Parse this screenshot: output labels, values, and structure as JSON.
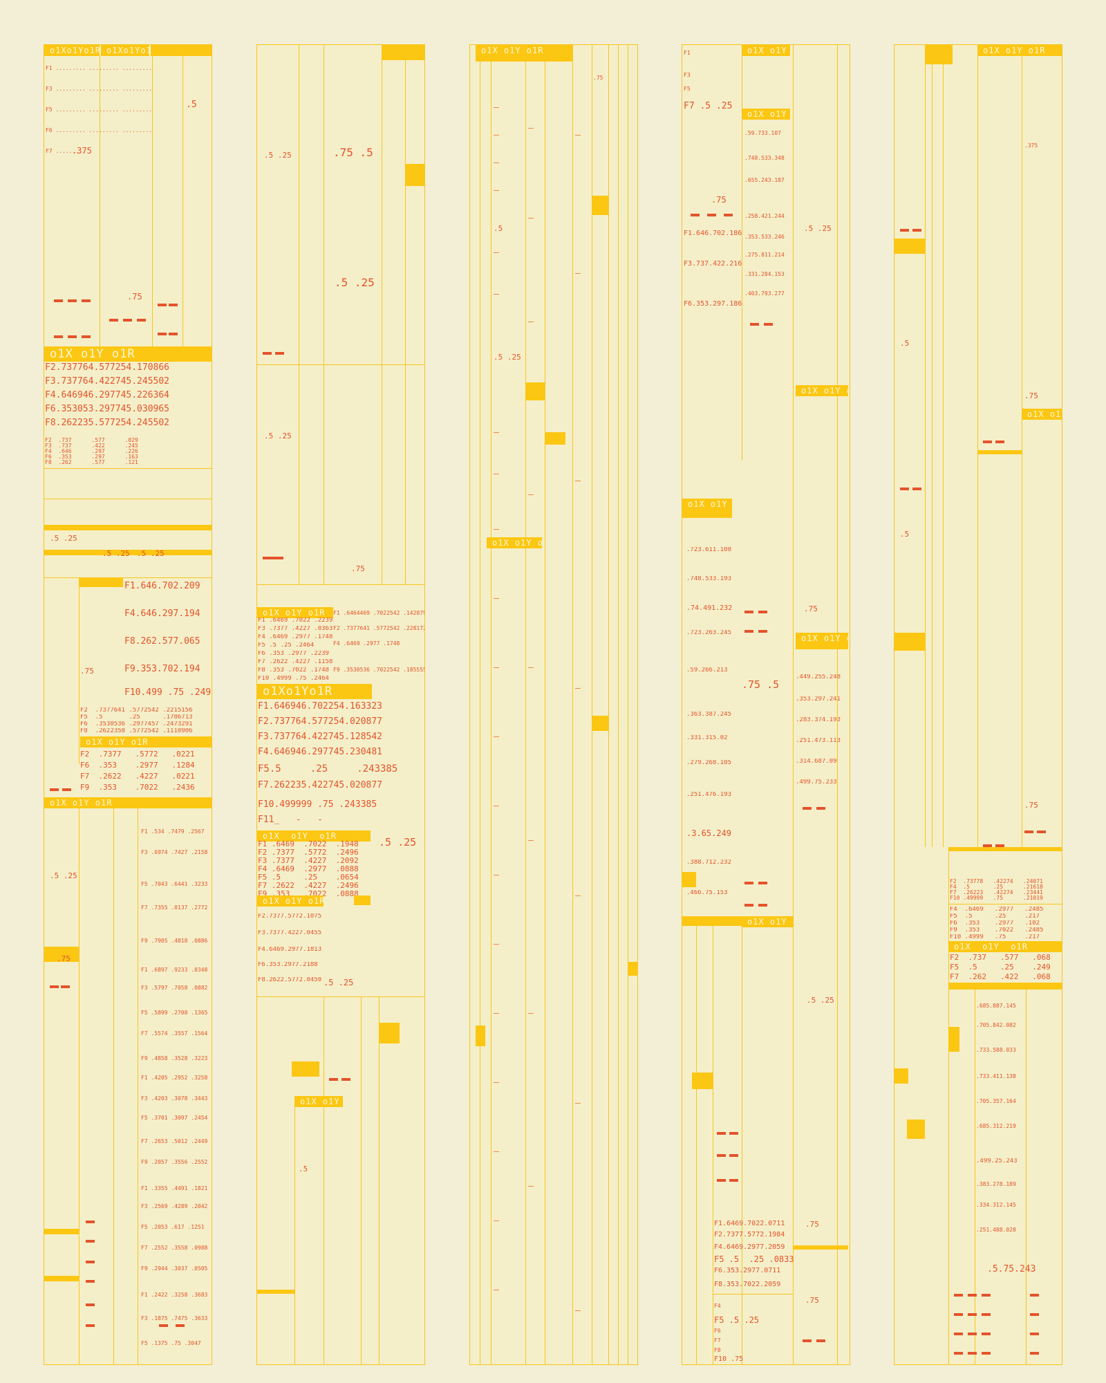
{
  "palette": {
    "background": "#f2efd6",
    "panel": "#f4efc9",
    "gold": "#fcc713",
    "line": "#f7c51e",
    "red": "#e4532c"
  },
  "col1": {
    "hdr_a": "o1Xo1Yo1R",
    "hdr_b": "o1Xo1Yo1R",
    "v1": ".5",
    "v2": ".375",
    "v3": ".75",
    "bigband": "o1X o1Y o1R",
    "rows": [
      "F2.737764.577254.170866",
      "F3.737764.422745.245502",
      "F4.646946.297745.226364",
      "F6.353053.297745.030965",
      "F8.262235.577254.245502"
    ],
    "small": [
      "F2  .737      .577      .029",
      "F3  .737      .422      .245",
      "F4  .646      .297      .226",
      "F6  .353      .297      .163",
      "F8  .262      .577      .121"
    ],
    "mid_a": ".5 .25",
    "mid_b": ".5 .25",
    "mid_c": ".5 .25",
    "right_rows": [
      "F1.646.702.209",
      "F4.646.297.194",
      "F8.262.577.065",
      "F9.353.702.194",
      "F10.499 .75 .249"
    ],
    "band2": "o1X o1Y o1R",
    "five": [
      "F2  .7377641 .5772542 .2215156",
      "F5  .5       .25      .1786713",
      "F6  .3530536 .2977457 .2473291",
      "F8  .2622358 .5772542 .1110906"
    ],
    "band3": "o1X  o1Y  o1R",
    "four": [
      "F2  .7377   .5772   .0221",
      "F6  .353    .2977   .1284",
      "F7  .2622   .4227   .0221",
      "F9  .353    .7022   .2436"
    ],
    "lower_hdr": "o1X o1Y o1R",
    "lower_rows": [
      "F1 .534 .7479 .2567",
      "F3 .6974 .7427 .2158",
      "F5 .7043 .6441 .3233",
      "F7 .7355 .0137 .2772",
      "F9 .7905 .4818 .0886",
      "F1 .6897 .9233 .0348",
      "F3 .5797 .7058 .0882",
      "F5 .5899 .2708 .1365",
      "F7 .5574 .3557 .1564",
      "F9 .4858 .3528 .3223",
      "F1 .4205 .2952 .3258",
      "F3 .4203 .3078 .3443",
      "F5 .3701 .3097 .2454",
      "F7 .2653 .5012 .2449",
      "F9 .2057 .3556 .2552",
      "F1 .3355 .4491 .1821",
      "F3 .2569 .4289 .2042",
      "F5 .2053 .617 .1251",
      "F7 .2552 .3558 .0988",
      "F9 .2944 .3037 .0505",
      "F1 .2422 .3258 .3683",
      "F3 .1875 .7475 .3633",
      "F5 .1375 .75 .3047"
    ],
    "v75": ".75"
  },
  "col2": {
    "v_mid": ".75 .5",
    "v_a": ".5 .25",
    "v_b": ".5 .25",
    "v_c": ".5 .25",
    "v_d": ".75",
    "band": "o1X o1Y o1R",
    "block_rows": [
      "F1 .6469 .7022 .2239",
      "F3 .7377 .4227 .0363",
      "F4 .6469 .2977 .1748",
      "F5 .5    .25   .2464",
      "F6 .353 .2977 .2239",
      "F7 .2622 .4227 .1158",
      "F8 .353 .7022 .1748",
      "F10 .4999 .75 .2464"
    ],
    "mini_rows": [
      "F1 .6464469 .7022542 .1428795",
      "F2 .7377641 .5772542 .2281729",
      "F4 .6469 .2977 .1748",
      "F9 .3530536 .7022542 .1855553"
    ],
    "bigband": "o1Xo1Yo1R",
    "big_rows": [
      "F1.646946.702254.163323",
      "F2.737764.577254.020877",
      "F3.737764.422745.128542",
      "F4.646946.297745.230481",
      "F5.5     .25     .243385",
      "F7.262235.422745.020877",
      "F10.499999 .75 .243385",
      "F11_   -   -"
    ],
    "tbl_hdr": "o1X  o1Y  o1R",
    "tbl_rows": [
      "F1 .6469  .7022  .1948",
      "F2 .7377  .5772  .2496",
      "F3 .7377  .4227  .2092",
      "F4 .6469  .2977  .0888",
      "F5 .5     .25    .0654",
      "F7 .2622  .4227  .2496",
      "F9 .353   .7022  .0888"
    ],
    "hdr3": "o1X o1Y o1R",
    "mid_rows": [
      "F2.7377.5772.1075",
      "F3.7377.4227.0455",
      "F4.6469.2977.1813",
      "F6.353.2977.2188",
      "F8.2622.5772.0450"
    ],
    "hdr4": "o1X o1Y o1R",
    "v_e": ".5 .25",
    "v_f": ".5 .25"
  },
  "col3": {
    "hdr": "o1X o1Y o1R",
    "hdr2": "o1X o1Y o1R",
    "v_a": ".5",
    "v_b": ".5 .25",
    "v_c": ".75"
  },
  "col4": {
    "hdr": "o1X o1Y o1R",
    "hdr2": "o1X o1Y o1R",
    "top_rows": [
      "F1",
      "F3",
      "F5",
      "F7 .5 .25"
    ],
    "rows_a": [
      "F1.646.702.186",
      "F3.737.422.216",
      "F6.353.297.186"
    ],
    "side_rows": [
      ".59.733.107",
      ".748.533.348",
      ".655.243.187",
      ".258.421.244",
      ".353.533.246",
      ".275.811.214",
      ".331.284.153",
      ".403.793.277"
    ],
    "band": "o1X o1Y o1R",
    "band2": "o1X o1Y o1R",
    "band3": "o1X o1Y o1R",
    "band4": "o1X o1Y o1R",
    "side2": [
      ".723.611.108",
      ".748.533.193",
      ".74.491.232",
      ".723.263.245",
      ".59.266.213",
      ".363.387.245",
      ".331.315.02",
      ".279.268.105",
      ".251.476.193",
      ".3.65.249",
      ".388.712.232",
      ".466.75.153"
    ],
    "right_vals": [
      ".449.255.248",
      ".353.297.241",
      ".283.374.193",
      ".251.473.113",
      ".314.687.09",
      ".499.75.233"
    ],
    "v_a": ".75 .5",
    "v_b": ".5 .25",
    "v_c": ".5 .25",
    "v_d": ".75",
    "low_rows": [
      "F1.6469.7022.0711",
      "F2.7377.5772.1984",
      "F4.6469.2977.2059",
      "F5 .5  .25 .0833",
      "F6.353.2977.0711",
      "F8.353.7022.2059"
    ],
    "low_rows2": [
      "F4",
      "F5 .5 .25",
      "F6",
      "F7",
      "F8",
      "F10 .75"
    ]
  },
  "col5": {
    "hdr": "o1X o1Y o1R",
    "hdr2": "o1X o1Y o1R",
    "hdr3": "o1X o1Y o1R",
    "v_a": ".375",
    "v_b": ".5",
    "v_c": ".5",
    "v_d": ".75",
    "v_e": ".75",
    "tbl": [
      "F2  .73778   .42274   .24071",
      "F4  .5       .25      .21618",
      "F7  .26223   .42274   .23441",
      "F10 .49999   .75      .21019"
    ],
    "tbl2": [
      "F4  .6469   .2977   .2485",
      "F5  .5      .25     .217",
      "F6  .353    .2977   .102",
      "F9  .353    .7022   .2485",
      "F10 .4999   .75     .217"
    ],
    "hdr4": "o1X  o1Y  o1R",
    "tbl3": [
      "F2  .737   .577   .068",
      "F5  .5     .25    .249",
      "F7  .262   .422   .068"
    ],
    "lower": [
      ".685.887.145",
      ".705.842.082",
      ".733.588.033",
      ".733.411.138",
      ".705.357.164",
      ".685.312.219",
      ".499.25.243",
      ".383.278.189",
      ".334.312.145",
      ".251.488.028",
      ".5.75.243"
    ]
  }
}
